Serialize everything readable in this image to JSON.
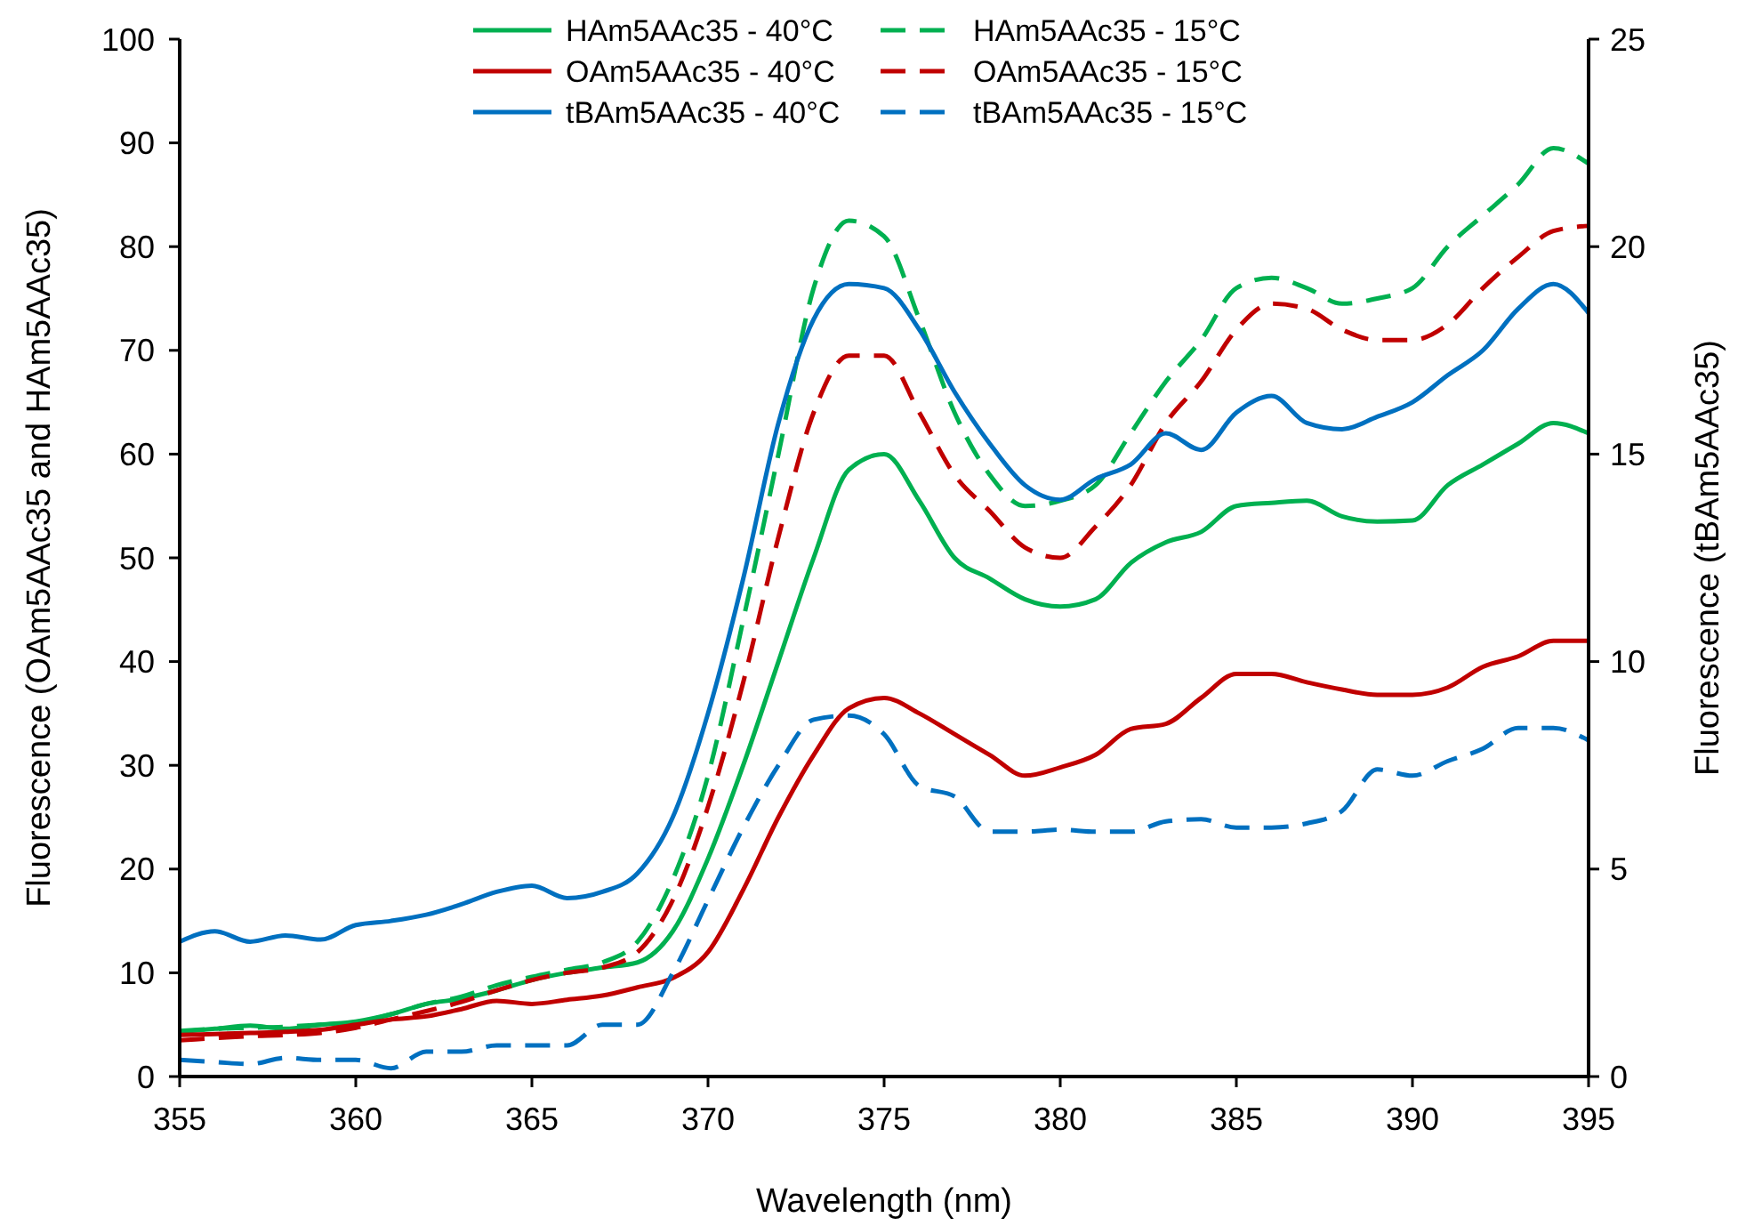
{
  "chart_data": {
    "type": "line",
    "xlabel": "Wavelength (nm)",
    "ylabel": "Fluorescence (OAm5AAc35 and HAm5AAc35)",
    "y2label": "Fluorescence (tBAm5AAc35)",
    "x": [
      355,
      356,
      357,
      358,
      359,
      360,
      361,
      362,
      363,
      364,
      365,
      366,
      367,
      368,
      369,
      370,
      371,
      372,
      373,
      374,
      375,
      376,
      377,
      378,
      379,
      380,
      381,
      382,
      383,
      384,
      385,
      386,
      387,
      388,
      389,
      390,
      391,
      392,
      393,
      394,
      395
    ],
    "xlim": [
      355,
      395
    ],
    "xticks": [
      355,
      360,
      365,
      370,
      375,
      380,
      385,
      390,
      395
    ],
    "ylim": [
      0,
      100
    ],
    "yticks": [
      0,
      10,
      20,
      30,
      40,
      50,
      60,
      70,
      80,
      90,
      100
    ],
    "y2lim": [
      0,
      25
    ],
    "y2ticks": [
      0,
      5,
      10,
      15,
      20,
      25
    ],
    "grid": false,
    "legend": "top",
    "marker": "none",
    "series": [
      {
        "name": "HAm5AAc35 - 40°C",
        "color": "#00b050",
        "line_style": "solid",
        "values": [
          4.3,
          4.6,
          4.9,
          4.6,
          5,
          5.3,
          6,
          7,
          7.5,
          8.3,
          9.3,
          10,
          10.5,
          11,
          14,
          21,
          30,
          40,
          50,
          58.5,
          60,
          55.5,
          50,
          48,
          46,
          45.3,
          46,
          49.5,
          51.5,
          52.5,
          55,
          55.3,
          55.5,
          54,
          53.5,
          53.6,
          57,
          59,
          61,
          63,
          62
        ]
      },
      {
        "name": "HAm5AAc35 - 15°C",
        "color": "#00b050",
        "line_style": "dashed",
        "values": [
          4.4,
          4.6,
          4.7,
          4.8,
          5,
          5.2,
          6,
          7,
          7.7,
          8.8,
          9.6,
          10.3,
          11,
          13,
          19,
          29,
          44,
          60,
          76,
          82.5,
          81,
          73,
          64,
          58,
          55,
          55.5,
          57,
          62,
          67,
          71,
          76,
          77,
          76,
          74.5,
          75,
          76,
          80,
          83,
          86,
          89.5,
          88
        ]
      },
      {
        "name": "OAm5AAc35 - 40°C",
        "color": "#c00000",
        "line_style": "solid",
        "values": [
          4,
          4.1,
          4.2,
          4.3,
          4.5,
          5,
          5.5,
          5.8,
          6.5,
          7.3,
          7,
          7.4,
          7.8,
          8.6,
          9.5,
          12,
          18,
          25,
          31,
          35.5,
          36.5,
          35,
          33,
          31,
          29,
          29.8,
          31,
          33.5,
          34,
          36.5,
          38.8,
          38.8,
          38,
          37.3,
          36.8,
          36.8,
          37.5,
          39.5,
          40.5,
          42,
          42
        ]
      },
      {
        "name": "OAm5AAc35 - 15°C",
        "color": "#c00000",
        "line_style": "dashed",
        "values": [
          3.5,
          3.7,
          3.9,
          4,
          4.2,
          4.7,
          5.5,
          6.3,
          7.2,
          8.3,
          9.3,
          10,
          10.5,
          12,
          17,
          26,
          38,
          52,
          64,
          69.5,
          69.5,
          64,
          58,
          54.5,
          51,
          50,
          53,
          57,
          63,
          67,
          72,
          74.5,
          74,
          72,
          71,
          71,
          72.5,
          76,
          79,
          81.5,
          82
        ]
      },
      {
        "name": "tBAm5AAc35 - 40°C",
        "color": "#0070c0",
        "line_style": "solid",
        "axis": "y2",
        "values": [
          3.25,
          3.5,
          3.25,
          3.4,
          3.3,
          3.65,
          3.75,
          3.9,
          4.15,
          4.45,
          4.6,
          4.3,
          4.45,
          4.9,
          6.25,
          8.75,
          12,
          15.75,
          18.25,
          19.1,
          19,
          18,
          16.5,
          15.25,
          14.25,
          13.9,
          14.4,
          14.75,
          15.5,
          15.1,
          16,
          16.4,
          15.75,
          15.6,
          15.9,
          16.25,
          16.9,
          17.5,
          18.5,
          19.1,
          18.4
        ]
      },
      {
        "name": "tBAm5AAc35 - 15°C",
        "color": "#0070c0",
        "line_style": "dashed",
        "axis": "y2",
        "values": [
          0.4,
          0.35,
          0.3,
          0.45,
          0.4,
          0.4,
          0.2,
          0.6,
          0.6,
          0.75,
          0.75,
          0.75,
          1.25,
          1.25,
          2.5,
          4.25,
          6,
          7.5,
          8.6,
          8.7,
          8.25,
          7,
          6.75,
          5.9,
          5.9,
          5.95,
          5.9,
          5.9,
          6.15,
          6.2,
          6,
          6,
          6.1,
          6.4,
          7.4,
          7.25,
          7.6,
          7.9,
          8.4,
          8.4,
          8.1
        ]
      }
    ]
  }
}
